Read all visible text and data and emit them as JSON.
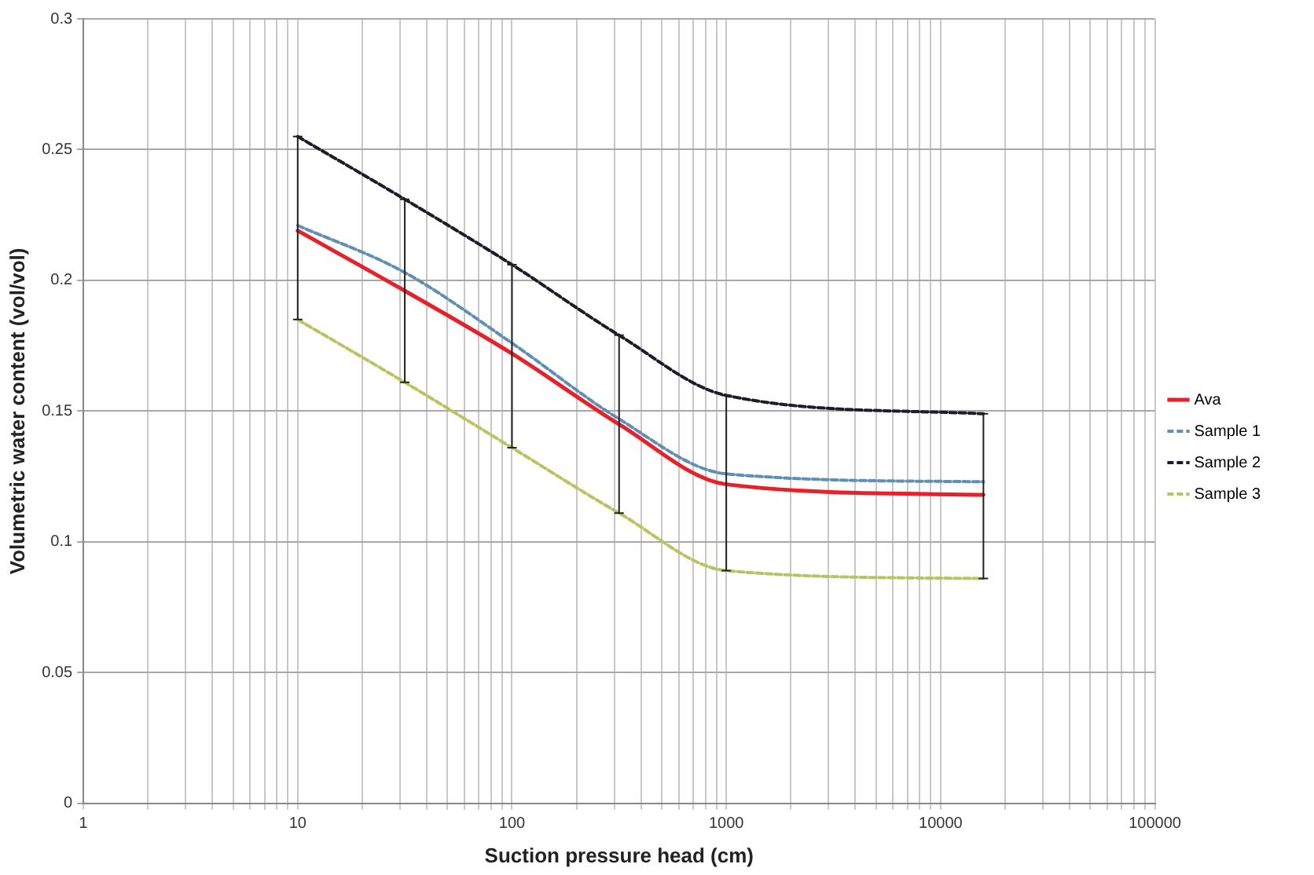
{
  "chart_data": {
    "type": "line",
    "xlabel": "Suction pressure head (cm)",
    "ylabel": "Volumetric water content (vol/vol)",
    "log": "x",
    "grid": true,
    "legend": "right",
    "marker": "none",
    "xlim": [
      1,
      100000
    ],
    "xticks": [
      1,
      {
        "value": 2,
        "label": null
      },
      {
        "value": 3,
        "label": null
      },
      {
        "value": 4,
        "label": null
      },
      {
        "value": 5,
        "label": null
      },
      {
        "value": 6,
        "label": null
      },
      {
        "value": 7,
        "label": null
      },
      {
        "value": 8,
        "label": null
      },
      {
        "value": 9,
        "label": null
      },
      10,
      {
        "value": 20,
        "label": null
      },
      {
        "value": 30,
        "label": null
      },
      {
        "value": 40,
        "label": null
      },
      {
        "value": 50,
        "label": null
      },
      {
        "value": 60,
        "label": null
      },
      {
        "value": 70,
        "label": null
      },
      {
        "value": 80,
        "label": null
      },
      {
        "value": 90,
        "label": null
      },
      100,
      {
        "value": 200,
        "label": null
      },
      {
        "value": 300,
        "label": null
      },
      {
        "value": 400,
        "label": null
      },
      {
        "value": 500,
        "label": null
      },
      {
        "value": 600,
        "label": null
      },
      {
        "value": 700,
        "label": null
      },
      {
        "value": 800,
        "label": null
      },
      {
        "value": 900,
        "label": null
      },
      1000,
      {
        "value": 2000,
        "label": null
      },
      {
        "value": 3000,
        "label": null
      },
      {
        "value": 4000,
        "label": null
      },
      {
        "value": 5000,
        "label": null
      },
      {
        "value": 6000,
        "label": null
      },
      {
        "value": 7000,
        "label": null
      },
      {
        "value": 8000,
        "label": null
      },
      {
        "value": 9000,
        "label": null
      },
      10000,
      {
        "value": 20000,
        "label": null
      },
      {
        "value": 30000,
        "label": null
      },
      {
        "value": 40000,
        "label": null
      },
      {
        "value": 50000,
        "label": null
      },
      {
        "value": 60000,
        "label": null
      },
      {
        "value": 70000,
        "label": null
      },
      {
        "value": 80000,
        "label": null
      },
      {
        "value": 90000,
        "label": null
      },
      100000
    ],
    "ylim": [
      0,
      0.3
    ],
    "yticks": [
      0,
      0.05,
      0.1,
      0.15,
      0.2,
      0.25,
      0.3
    ],
    "x": [
      10,
      31.6,
      100,
      316,
      1000,
      15849
    ],
    "series": [
      {
        "name": "Ava",
        "color": "#e8202a",
        "line_style": "solid",
        "values": [
          0.219,
          0.196,
          0.172,
          0.145,
          0.122,
          0.118
        ],
        "errors": [
          [
            0.185,
            0.255
          ],
          [
            0.161,
            0.231
          ],
          [
            0.136,
            0.206
          ],
          [
            0.111,
            0.179
          ],
          [
            0.089,
            0.156
          ],
          [
            0.086,
            0.149
          ]
        ]
      },
      {
        "name": "Sample 1",
        "color": "#5f8fb4",
        "line_style": "dashed",
        "values": [
          0.221,
          0.203,
          0.176,
          0.147,
          0.126,
          0.123
        ]
      },
      {
        "name": "Sample 2",
        "color": "#1c1c2a",
        "line_style": "dashed",
        "values": [
          0.255,
          0.231,
          0.206,
          0.179,
          0.156,
          0.149
        ]
      },
      {
        "name": "Sample 3",
        "color": "#b8c462",
        "line_style": "dashed",
        "values": [
          0.185,
          0.161,
          0.136,
          0.111,
          0.089,
          0.086
        ]
      }
    ]
  }
}
